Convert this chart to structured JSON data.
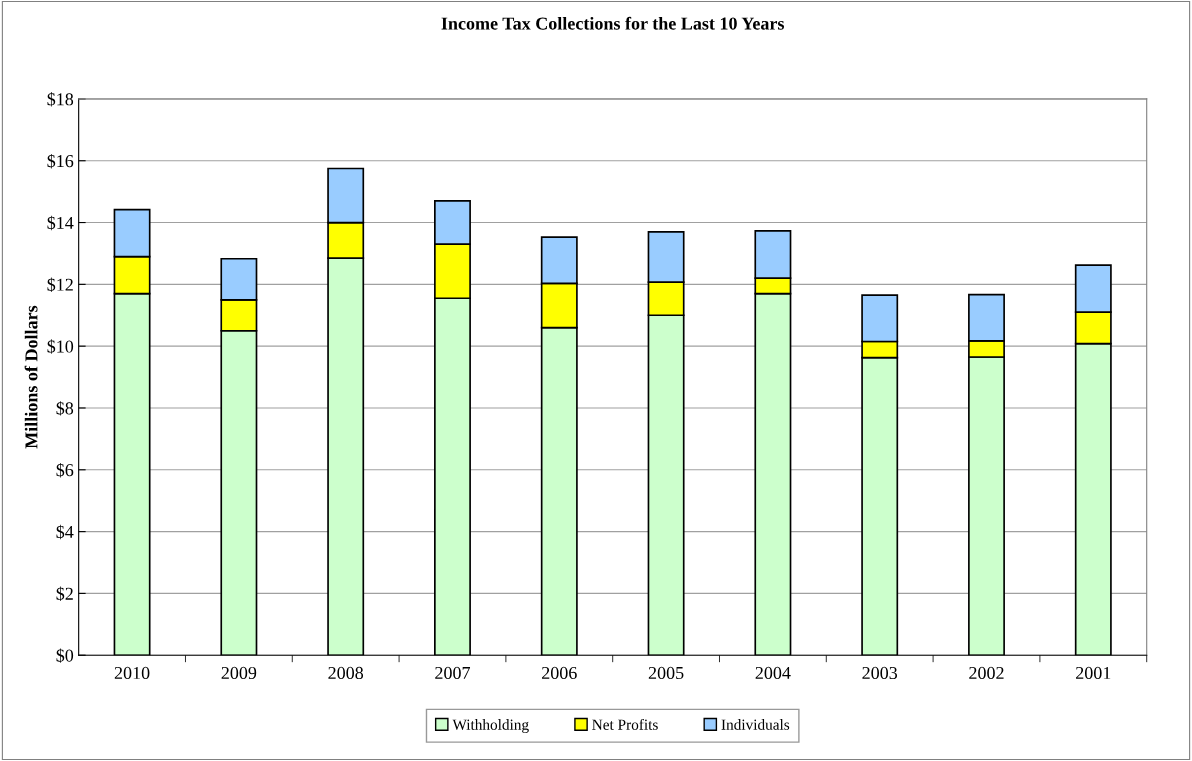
{
  "chart_data": {
    "type": "bar",
    "title": "Income Tax Collections for the Last 10 Years",
    "ylabel": "Millions of Dollars",
    "categories": [
      "2010",
      "2009",
      "2008",
      "2007",
      "2006",
      "2005",
      "2004",
      "2003",
      "2002",
      "2001"
    ],
    "stacked": true,
    "series": [
      {
        "name": "Withholding",
        "color": "#ccffcc",
        "values": [
          11.7,
          10.5,
          12.85,
          11.55,
          10.6,
          11.0,
          11.7,
          9.63,
          9.65,
          10.08
        ]
      },
      {
        "name": "Net Profits",
        "color": "#ffff00",
        "values": [
          1.2,
          1.0,
          1.15,
          1.75,
          1.43,
          1.07,
          0.5,
          0.52,
          0.52,
          1.02
        ]
      },
      {
        "name": "Individuals",
        "color": "#99ccff",
        "values": [
          1.52,
          1.33,
          1.75,
          1.4,
          1.5,
          1.63,
          1.53,
          1.5,
          1.5,
          1.52
        ]
      }
    ],
    "ylim": [
      0,
      18
    ],
    "yticks": [
      {
        "value": 0,
        "label": "$0"
      },
      {
        "value": 2,
        "label": "$2"
      },
      {
        "value": 4,
        "label": "$4"
      },
      {
        "value": 6,
        "label": "$6"
      },
      {
        "value": 8,
        "label": "$8"
      },
      {
        "value": 10,
        "label": "$10"
      },
      {
        "value": 12,
        "label": "$12"
      },
      {
        "value": 14,
        "label": "$14"
      },
      {
        "value": 16,
        "label": "$16"
      },
      {
        "value": 18,
        "label": "$18"
      }
    ],
    "grid": "y",
    "legend": "bottom"
  }
}
